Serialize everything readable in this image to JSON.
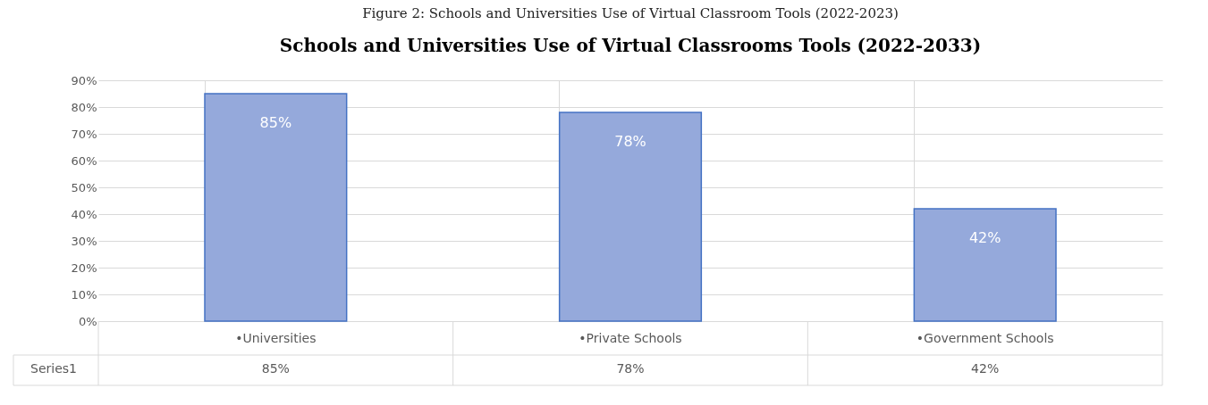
{
  "chart_data": {
    "type": "bar",
    "title": "Schools and Universities Use of Virtual Classrooms Tools (2022-2033)",
    "annotations": [
      "Figure 2: Schools and Universities Use of Virtual Classroom Tools (2022-2023)"
    ],
    "categories": [
      "•Universities",
      "•Private Schools",
      "•Government Schools"
    ],
    "series": [
      {
        "name": "Series1",
        "color": "#95a9db",
        "values": [
          85,
          78,
          42
        ]
      }
    ],
    "value_labels": [
      "85%",
      "78%",
      "42%"
    ],
    "ylim": [
      0,
      90
    ],
    "yticks": [
      {
        "value": 0,
        "label": "0%"
      },
      {
        "value": 10,
        "label": "10%"
      },
      {
        "value": 20,
        "label": "20%"
      },
      {
        "value": 30,
        "label": "30%"
      },
      {
        "value": 40,
        "label": "40%"
      },
      {
        "value": 50,
        "label": "50%"
      },
      {
        "value": 60,
        "label": "60%"
      },
      {
        "value": 70,
        "label": "70%"
      },
      {
        "value": 80,
        "label": "80%"
      },
      {
        "value": 90,
        "label": "90%"
      }
    ],
    "grid": true
  }
}
